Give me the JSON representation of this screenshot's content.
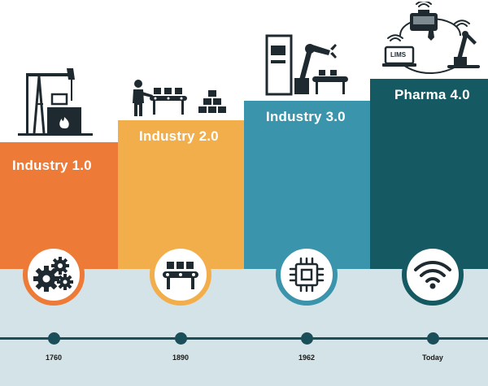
{
  "colors": {
    "industry_1": "#ed7a36",
    "industry_2": "#f2ae4b",
    "industry_3": "#3a94ab",
    "pharma_4": "#155963",
    "band": "#d4e3e7",
    "timeline": "#1a4e58",
    "icon_dark": "#1f2a30"
  },
  "stages": [
    {
      "label": "Industry 1.0",
      "year": "1760",
      "circle_icon": "gears-icon",
      "illustration": "steam-engine-icon"
    },
    {
      "label": "Industry 2.0",
      "year": "1890",
      "circle_icon": "conveyor-belt-icon",
      "illustration": "worker-assembly-line-icon"
    },
    {
      "label": "Industry 3.0",
      "year": "1962",
      "circle_icon": "microchip-icon",
      "illustration": "robot-arm-computer-icon"
    },
    {
      "label": "Pharma 4.0",
      "year": "Today",
      "circle_icon": "wifi-icon",
      "illustration": "connected-lab-icon"
    }
  ],
  "lims_label": "LIMS"
}
